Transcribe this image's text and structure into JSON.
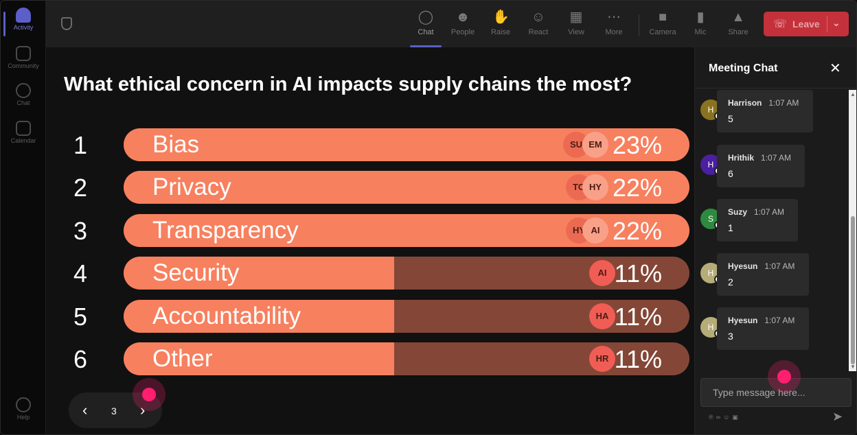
{
  "rail": {
    "items": [
      {
        "label": "Activity"
      },
      {
        "label": "Community"
      },
      {
        "label": "Chat"
      },
      {
        "label": "Calendar"
      }
    ],
    "help_label": "Help"
  },
  "topbar": {
    "buttons": [
      {
        "label": "Chat",
        "icon": "chat-bubble-icon"
      },
      {
        "label": "People",
        "icon": "people-icon"
      },
      {
        "label": "Raise",
        "icon": "raise-hand-icon"
      },
      {
        "label": "React",
        "icon": "react-smiley-icon"
      },
      {
        "label": "View",
        "icon": "view-grid-icon"
      },
      {
        "label": "More",
        "icon": "more-dots-icon"
      },
      {
        "label": "Camera",
        "icon": "camera-off-icon"
      },
      {
        "label": "Mic",
        "icon": "mic-icon"
      },
      {
        "label": "Share",
        "icon": "share-icon"
      }
    ],
    "leave_label": "Leave"
  },
  "poll": {
    "question": "What ethical concern in AI impacts supply chains the most?",
    "page": "3",
    "colors": {
      "fill": "#f7805f",
      "track": "#844737"
    },
    "options": [
      {
        "num": "1",
        "label": "Bias",
        "percent": "23%",
        "value": 23,
        "avatars": [
          "SU",
          "EM"
        ]
      },
      {
        "num": "2",
        "label": "Privacy",
        "percent": "22%",
        "value": 22,
        "avatars": [
          "TO",
          "HY"
        ]
      },
      {
        "num": "3",
        "label": "Transparency",
        "percent": "22%",
        "value": 22,
        "avatars": [
          "HY",
          "AI"
        ]
      },
      {
        "num": "4",
        "label": "Security",
        "percent": "11%",
        "value": 11,
        "avatars": [
          "AI"
        ]
      },
      {
        "num": "5",
        "label": "Accountability",
        "percent": "11%",
        "value": 11,
        "avatars": [
          "HA"
        ]
      },
      {
        "num": "6",
        "label": "Other",
        "percent": "11%",
        "value": 11,
        "avatars": [
          "HR"
        ]
      }
    ]
  },
  "chat": {
    "title": "Meeting Chat",
    "messages": [
      {
        "initial": "H",
        "name": "Harrison",
        "time": "1:07 AM",
        "text": "5",
        "color": "#8a7320"
      },
      {
        "initial": "H",
        "name": "Hrithik",
        "time": "1:07 AM",
        "text": "6",
        "color": "#4b1fa0"
      },
      {
        "initial": "S",
        "name": "Suzy",
        "time": "1:07 AM",
        "text": "1",
        "color": "#2e8a3e"
      },
      {
        "initial": "H",
        "name": "Hyesun",
        "time": "1:07 AM",
        "text": "2",
        "color": "#b5ac78"
      },
      {
        "initial": "H",
        "name": "Hyesun",
        "time": "1:07 AM",
        "text": "3",
        "color": "#b5ac78"
      }
    ],
    "composer_placeholder": "Type message here..."
  }
}
